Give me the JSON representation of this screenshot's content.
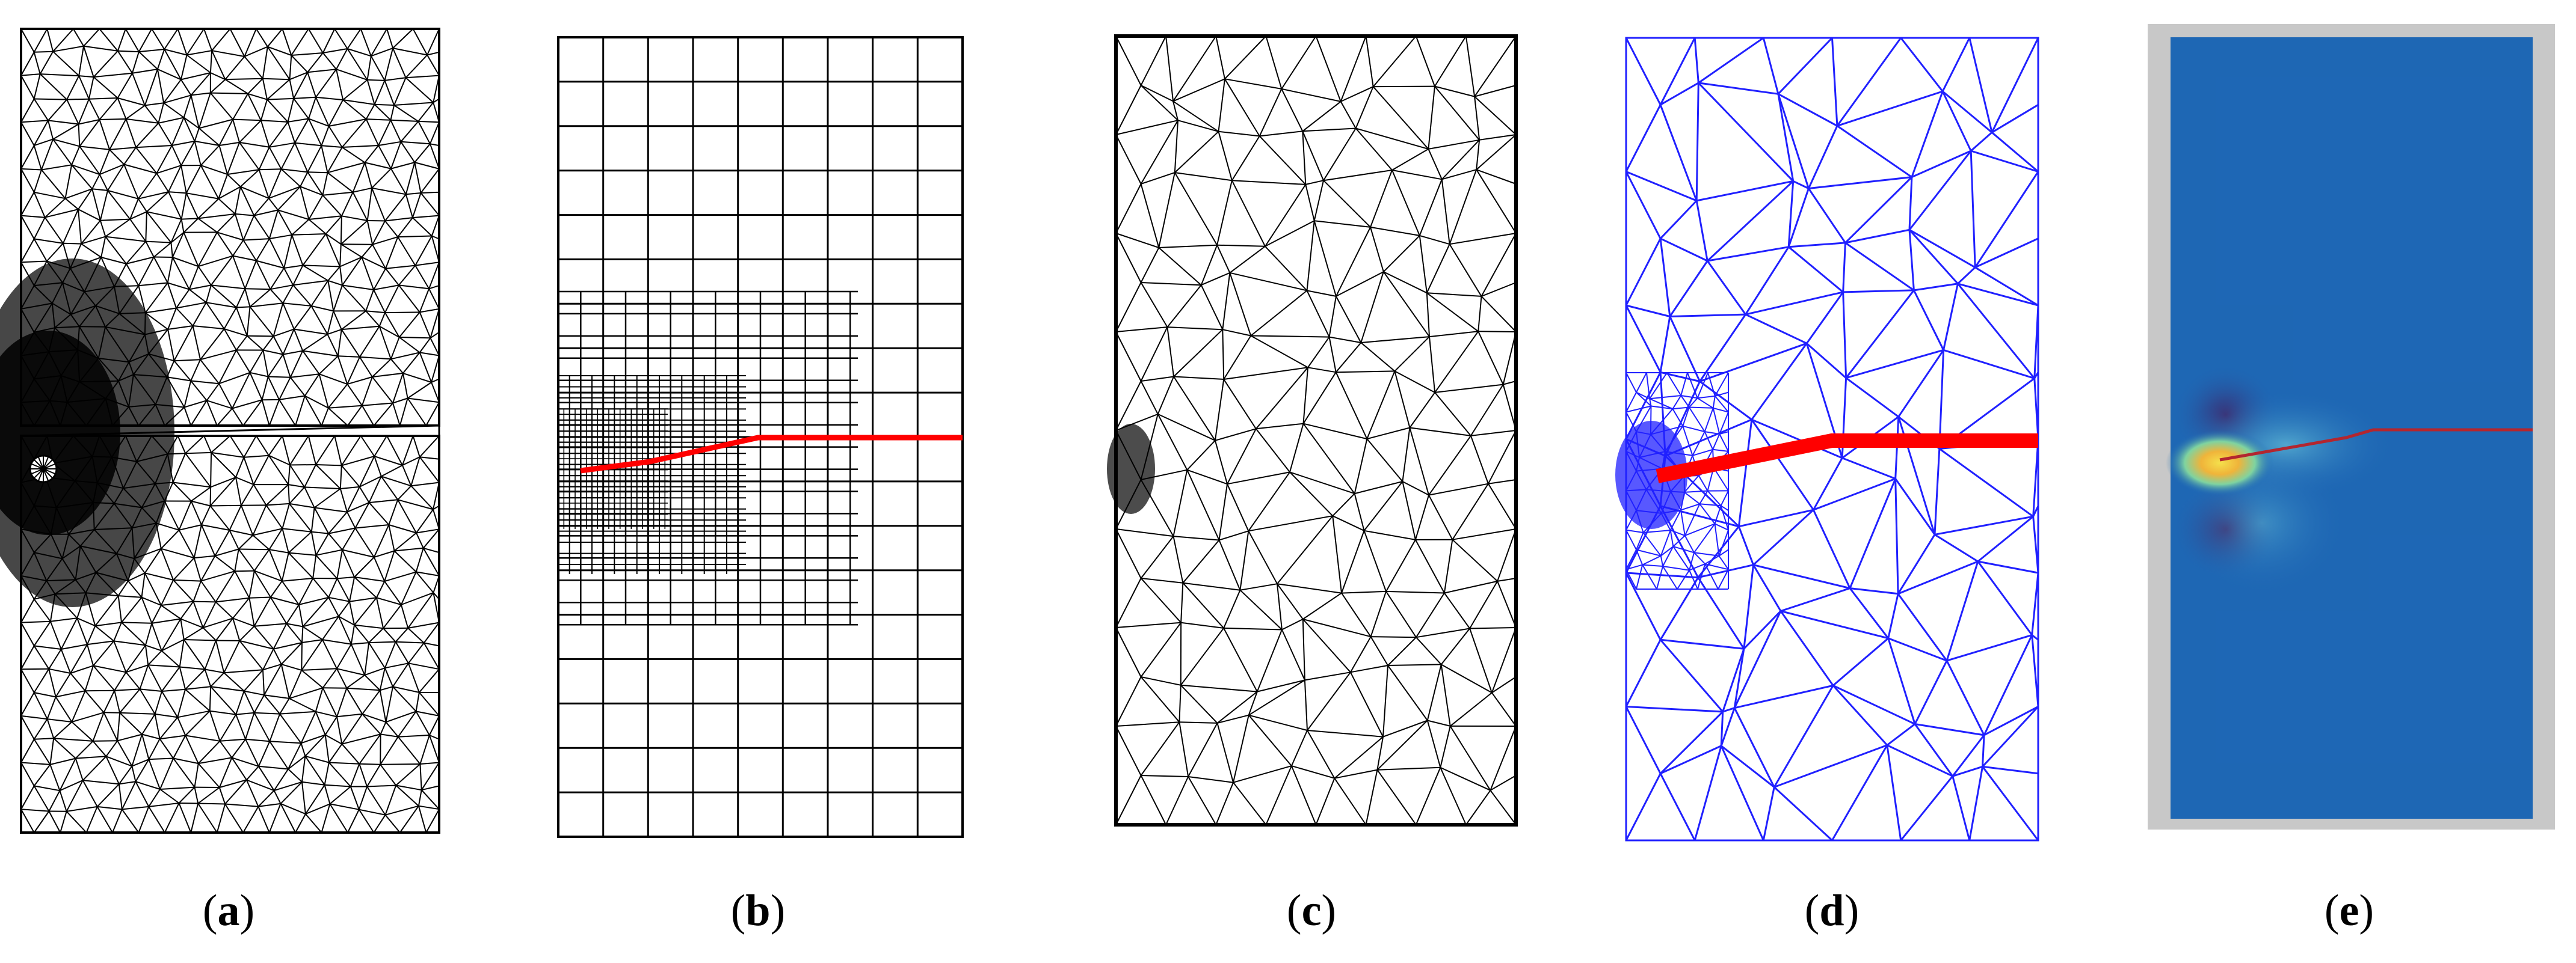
{
  "panels": [
    {
      "id": "a",
      "label": "a"
    },
    {
      "id": "b",
      "label": "b"
    },
    {
      "id": "c",
      "label": "c"
    },
    {
      "id": "d",
      "label": "d"
    },
    {
      "id": "e",
      "label": "e"
    }
  ],
  "colors": {
    "mesh_black": "#000000",
    "mesh_blue": "#2020ff",
    "crack_red": "#ff0000",
    "field_background": "#1f68b6",
    "frame_gray": "#c8c8c8",
    "field_hot": "#f2d24a",
    "field_crack_line": "#b3262f"
  }
}
